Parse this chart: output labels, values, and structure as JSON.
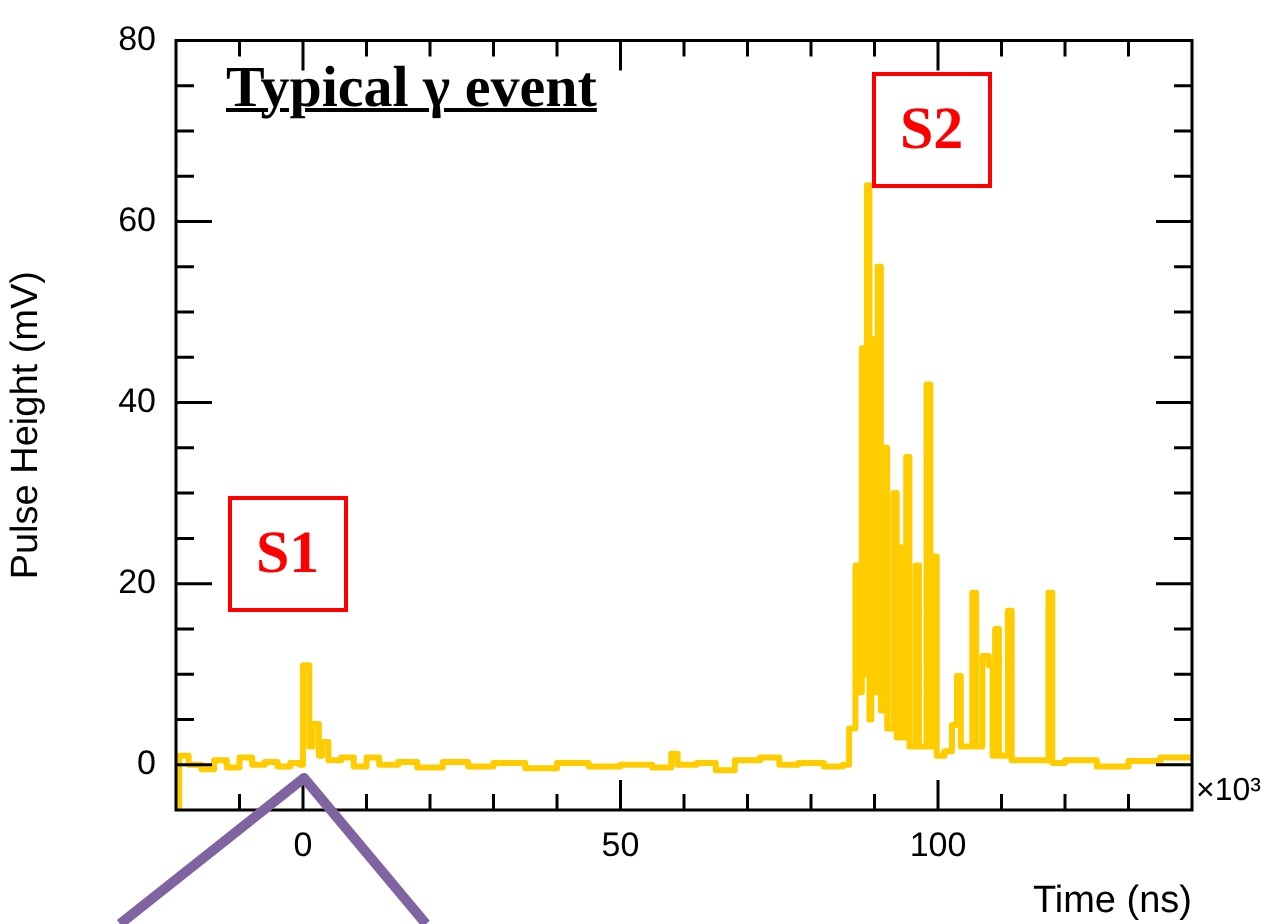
{
  "chart_data": {
    "type": "step",
    "title": "Typical γ event",
    "xlabel": "Time (ns)",
    "ylabel": "Pulse Height (mV)",
    "annotations": [
      "S1",
      "S2",
      "×10³"
    ],
    "x": [
      -20,
      -19.5,
      -18,
      -16,
      -14,
      -12,
      -10,
      -8,
      -6,
      -4,
      -2,
      -0.5,
      0,
      1,
      1.5,
      2.5,
      3,
      4,
      6,
      8,
      10,
      12,
      15,
      18,
      22,
      26,
      30,
      35,
      40,
      45,
      50,
      55,
      58,
      59,
      62,
      65,
      68,
      72,
      75,
      78,
      82,
      85,
      86,
      87,
      87.5,
      88,
      88.5,
      88.8,
      89.2,
      89.5,
      90,
      90.5,
      91,
      91.4,
      92,
      93,
      93.5,
      94,
      94.5,
      95,
      95.5,
      96.5,
      97,
      98.2,
      98.8,
      99.3,
      99.8,
      101,
      102.2,
      103,
      103.6,
      105.4,
      106,
      107,
      108,
      108.6,
      109,
      109.6,
      111,
      111.6,
      113,
      117.4,
      118,
      120,
      125,
      130,
      135,
      140
    ],
    "series": [
      {
        "color": "#ffcc00",
        "values": [
          -5,
          1,
          0,
          -0.5,
          0.5,
          -0.3,
          0.8,
          0,
          0.3,
          -0.2,
          0.2,
          0,
          11,
          2,
          4.5,
          1,
          2.5,
          0.5,
          0.8,
          -0.2,
          0.8,
          0,
          0.3,
          -0.3,
          0.3,
          -0.2,
          0.2,
          -0.4,
          0.2,
          -0.2,
          0,
          -0.3,
          1.2,
          0,
          0.2,
          -0.6,
          0.5,
          0.8,
          0,
          0.2,
          -0.2,
          0,
          4,
          22,
          8,
          46,
          10,
          64,
          5,
          47,
          8,
          55,
          6,
          35,
          4,
          30,
          3,
          24,
          3,
          34,
          2,
          22,
          2,
          42,
          2,
          23,
          1,
          1.5,
          4.4,
          9.8,
          2,
          19,
          2,
          12,
          11,
          1,
          15,
          1,
          17,
          0.5,
          0.5,
          19,
          0.2,
          0.5,
          -0.2,
          0.4,
          0.8,
          0.5
        ]
      }
    ],
    "xlim": [
      -20,
      140
    ],
    "ylim": [
      -5,
      80
    ],
    "xticks": [
      {
        "value": -10,
        "label": null
      },
      0,
      {
        "value": 10,
        "label": null
      },
      {
        "value": 20,
        "label": null
      },
      {
        "value": 30,
        "label": null
      },
      {
        "value": 40,
        "label": null
      },
      50,
      {
        "value": 60,
        "label": null
      },
      {
        "value": 70,
        "label": null
      },
      {
        "value": 80,
        "label": null
      },
      {
        "value": 90,
        "label": null
      },
      100,
      {
        "value": 110,
        "label": null
      },
      {
        "value": 120,
        "label": null
      },
      {
        "value": 130,
        "label": null
      }
    ],
    "yticks": [
      0,
      {
        "value": 5,
        "label": null
      },
      {
        "value": 10,
        "label": null
      },
      {
        "value": 15,
        "label": null
      },
      20,
      {
        "value": 25,
        "label": null
      },
      {
        "value": 30,
        "label": null
      },
      {
        "value": 35,
        "label": null
      },
      40,
      {
        "value": 45,
        "label": null
      },
      {
        "value": 50,
        "label": null
      },
      {
        "value": 55,
        "label": null
      },
      60,
      {
        "value": 65,
        "label": null
      },
      {
        "value": 70,
        "label": null
      },
      {
        "value": 75,
        "label": null
      },
      80
    ],
    "grid": false,
    "legend": false,
    "marker": "none",
    "line_style": "solid"
  }
}
